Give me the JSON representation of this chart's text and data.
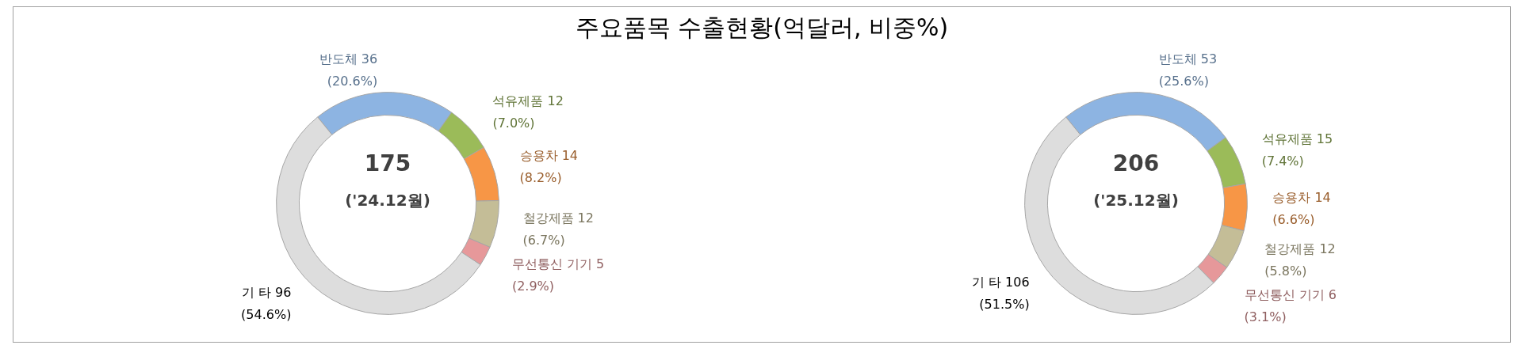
{
  "chart_data": [
    {
      "type": "donut",
      "title": "주요품목 수출현황(억달러, 비중%)",
      "categories": [
        "반도체",
        "석유제품",
        "승용차",
        "철강제품",
        "무선통신 기기",
        "기 타"
      ],
      "values": [
        36,
        12,
        14,
        12,
        5,
        96
      ],
      "colors": [
        "#8db4e2",
        "#9bbb59",
        "#f79646",
        "#c4bd97",
        "#e6989a",
        "#dddddd"
      ],
      "value_labels": [
        "36 (20.6%)",
        "12 (7.0%)",
        "14 (8.2%)",
        "12 (6.7%)",
        "5 (2.9%)",
        "96 (54.6%)"
      ],
      "annotations": [
        "175",
        "('24.12월)"
      ],
      "legend": false
    },
    {
      "type": "donut",
      "categories": [
        "반도체",
        "석유제품",
        "승용차",
        "철강제품",
        "무선통신 기기",
        "기 타"
      ],
      "values": [
        53,
        15,
        14,
        12,
        6,
        106
      ],
      "colors": [
        "#8db4e2",
        "#9bbb59",
        "#f79646",
        "#c4bd97",
        "#e6989a",
        "#dddddd"
      ],
      "value_labels": [
        "53 (25.6%)",
        "15 (7.4%)",
        "14 (6.6%)",
        "12 (5.8%)",
        "6 (3.1%)",
        "106 (51.5%)"
      ],
      "annotations": [
        "206",
        "('25.12월)"
      ],
      "legend": false
    }
  ]
}
